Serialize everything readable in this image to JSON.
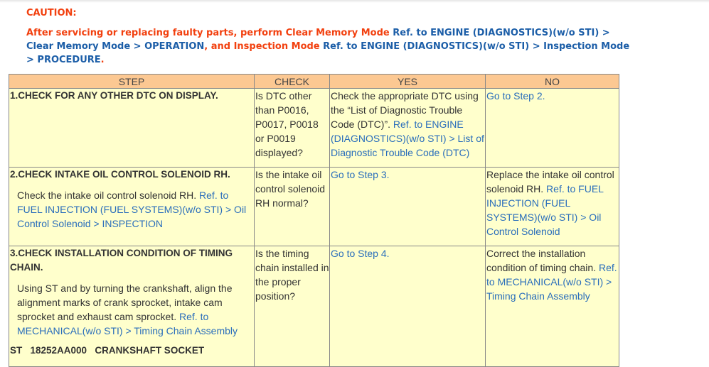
{
  "caution": {
    "title": "CAUTION:",
    "text1": "After servicing or replacing faulty parts, perform Clear Memory Mode ",
    "link1": "Ref. to ENGINE (DIAGNOSTICS)(w/o STI) > Clear Memory Mode > OPERATION",
    "text2": ", and Inspection Mode ",
    "link2": "Ref. to ENGINE (DIAGNOSTICS)(w/o STI) > Inspection Mode > PROCEDURE",
    "text3": "."
  },
  "table": {
    "headers": [
      "STEP",
      "CHECK",
      "YES",
      "NO"
    ],
    "rows": [
      {
        "step_title": "1.CHECK FOR ANY OTHER DTC ON DISPLAY.",
        "check": "Is DTC other than P0016, P0017, P0018 or P0019 displayed?",
        "yes_text": "Check the appropriate DTC using the “List of Diagnostic Trouble Code (DTC)”. ",
        "yes_link": "Ref. to ENGINE (DIAGNOSTICS)(w/o STI) > List of Diagnostic Trouble Code (DTC)",
        "no_link": "Go to Step 2."
      },
      {
        "step_title": "2.CHECK INTAKE OIL CONTROL SOLENOID RH.",
        "step_text": "Check the intake oil control solenoid RH. ",
        "step_link": "Ref. to FUEL INJECTION (FUEL SYSTEMS)(w/o STI) > Oil Control Solenoid > INSPECTION",
        "check": "Is the intake oil control solenoid RH normal?",
        "yes_link": "Go to Step 3.",
        "no_text": "Replace the intake oil control solenoid RH. ",
        "no_link": "Ref. to FUEL INJECTION (FUEL SYSTEMS)(w/o STI) > Oil Control Solenoid"
      },
      {
        "step_title": "3.CHECK INSTALLATION CONDITION OF TIMING CHAIN.",
        "step_text": "Using ST and by turning the crankshaft, align the alignment marks of crank sprocket, intake cam sprocket and exhaust cam sprocket. ",
        "step_link": "Ref. to MECHANICAL(w/o STI) > Timing Chain Assembly",
        "st": "ST   18252AA000   CRANKSHAFT SOCKET",
        "check": "Is the timing chain installed in the proper position?",
        "yes_link": "Go to Step 4.",
        "no_text": "Correct the installation condition of timing chain. ",
        "no_link": "Ref. to MECHANICAL(w/o STI) > Timing Chain Assembly"
      }
    ]
  }
}
